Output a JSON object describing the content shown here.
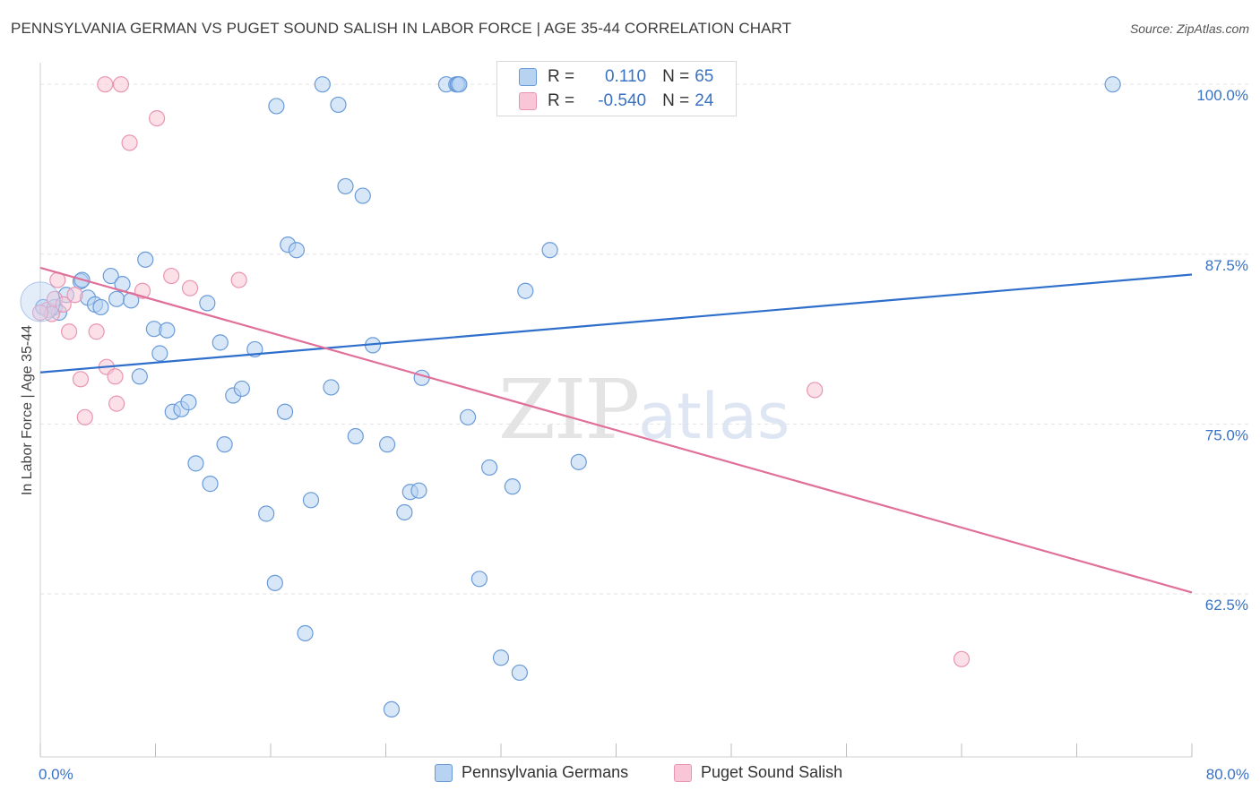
{
  "title": "PENNSYLVANIA GERMAN VS PUGET SOUND SALISH IN LABOR FORCE | AGE 35-44 CORRELATION CHART",
  "source": "Source: ZipAtlas.com",
  "watermark": {
    "zip": "ZIP",
    "atlas": "atlas"
  },
  "stats": {
    "r_label": "R =",
    "n_label": "N =",
    "rows": [
      {
        "r": "0.110",
        "n": "65"
      },
      {
        "r": "-0.540",
        "n": "24"
      }
    ]
  },
  "colors": {
    "blue_fill": "#b8d3f2",
    "blue_stroke": "#6a9bd8",
    "blue_line": "#2f6fcc",
    "pink_fill": "#f8c6d6",
    "pink_stroke": "#e995b2",
    "pink_line": "#e0709a",
    "grid": "#e2e2e2",
    "tick_text": "#3a72c4"
  },
  "chart_data": {
    "type": "scatter",
    "title": "PENNSYLVANIA GERMAN VS PUGET SOUND SALISH IN LABOR FORCE | AGE 35-44 CORRELATION CHART",
    "xlabel": "",
    "ylabel": "In Labor Force | Age 35-44",
    "xlim": [
      0,
      80
    ],
    "ylim": [
      50.5,
      101
    ],
    "x_tick_labels": [
      "0.0%",
      "80.0%"
    ],
    "y_ticks": [
      62.5,
      75.0,
      87.5,
      100.0
    ],
    "y_tick_labels": [
      "62.5%",
      "75.0%",
      "87.5%",
      "100.0%"
    ],
    "grid": true,
    "legend_position": "bottom",
    "series": [
      {
        "name": "Pennsylvania Germans",
        "r": 0.11,
        "n": 65,
        "trend": {
          "x": [
            0,
            80
          ],
          "y": [
            78.8,
            86.0
          ]
        },
        "points": [
          [
            0.2,
            83.6
          ],
          [
            1.0,
            83.6
          ],
          [
            1.3,
            83.2
          ],
          [
            1.8,
            84.5
          ],
          [
            2.8,
            85.5
          ],
          [
            2.9,
            85.6
          ],
          [
            3.3,
            84.3
          ],
          [
            3.8,
            83.8
          ],
          [
            4.2,
            83.6
          ],
          [
            4.9,
            85.9
          ],
          [
            5.3,
            84.2
          ],
          [
            5.7,
            85.3
          ],
          [
            6.3,
            84.1
          ],
          [
            7.3,
            87.1
          ],
          [
            7.9,
            82.0
          ],
          [
            8.3,
            80.2
          ],
          [
            8.8,
            81.9
          ],
          [
            6.9,
            78.5
          ],
          [
            9.2,
            75.9
          ],
          [
            9.8,
            76.1
          ],
          [
            10.3,
            76.6
          ],
          [
            10.8,
            72.1
          ],
          [
            11.6,
            83.9
          ],
          [
            11.8,
            70.6
          ],
          [
            12.5,
            81.0
          ],
          [
            12.8,
            73.5
          ],
          [
            13.4,
            77.1
          ],
          [
            14.0,
            77.6
          ],
          [
            14.9,
            80.5
          ],
          [
            15.7,
            68.4
          ],
          [
            16.3,
            63.3
          ],
          [
            16.4,
            98.4
          ],
          [
            17.0,
            75.9
          ],
          [
            17.2,
            88.2
          ],
          [
            17.8,
            87.8
          ],
          [
            18.4,
            59.6
          ],
          [
            18.8,
            69.4
          ],
          [
            19.6,
            100.0
          ],
          [
            20.2,
            77.7
          ],
          [
            20.7,
            98.5
          ],
          [
            21.2,
            92.5
          ],
          [
            21.9,
            74.1
          ],
          [
            22.4,
            91.8
          ],
          [
            23.1,
            80.8
          ],
          [
            24.1,
            73.5
          ],
          [
            24.4,
            54.0
          ],
          [
            25.3,
            68.5
          ],
          [
            25.7,
            70.0
          ],
          [
            26.3,
            70.1
          ],
          [
            26.5,
            78.4
          ],
          [
            28.2,
            100.0
          ],
          [
            28.9,
            100.0
          ],
          [
            29.0,
            100.0
          ],
          [
            29.1,
            100.0
          ],
          [
            29.7,
            75.5
          ],
          [
            30.5,
            63.6
          ],
          [
            31.2,
            71.8
          ],
          [
            32.0,
            57.8
          ],
          [
            32.8,
            70.4
          ],
          [
            33.3,
            56.7
          ],
          [
            33.7,
            84.8
          ],
          [
            35.4,
            87.8
          ],
          [
            37.4,
            72.2
          ],
          [
            47.4,
            100.0
          ],
          [
            74.5,
            100.0
          ]
        ]
      },
      {
        "name": "Puget Sound Salish",
        "r": -0.54,
        "n": 24,
        "trend": {
          "x": [
            0,
            80
          ],
          "y": [
            86.5,
            62.6
          ]
        },
        "points": [
          [
            0.5,
            83.4
          ],
          [
            1.0,
            84.2
          ],
          [
            0.8,
            83.1
          ],
          [
            1.2,
            85.6
          ],
          [
            1.6,
            83.8
          ],
          [
            2.0,
            81.8
          ],
          [
            2.4,
            84.5
          ],
          [
            2.8,
            78.3
          ],
          [
            3.1,
            75.5
          ],
          [
            3.9,
            81.8
          ],
          [
            4.5,
            100.0
          ],
          [
            4.6,
            79.2
          ],
          [
            5.2,
            78.5
          ],
          [
            5.3,
            76.5
          ],
          [
            5.6,
            100.0
          ],
          [
            6.2,
            95.7
          ],
          [
            7.1,
            84.8
          ],
          [
            8.1,
            97.5
          ],
          [
            9.1,
            85.9
          ],
          [
            10.4,
            85.0
          ],
          [
            13.8,
            85.6
          ],
          [
            53.8,
            77.5
          ],
          [
            64.0,
            57.7
          ],
          [
            0.0,
            83.2
          ]
        ]
      }
    ]
  },
  "legend": {
    "items": [
      {
        "label": "Pennsylvania Germans"
      },
      {
        "label": "Puget Sound Salish"
      }
    ]
  }
}
